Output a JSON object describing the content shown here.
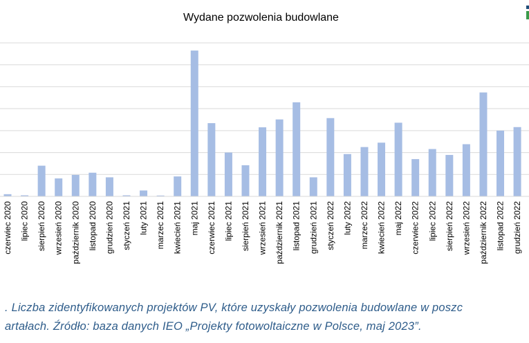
{
  "chart_data": {
    "type": "bar",
    "title": "Wydane pozwolenia budowlane",
    "xlabel": "",
    "ylabel": "",
    "ylim": [
      0,
      70
    ],
    "grid": true,
    "legend": "none",
    "bar_color": "#a6bde4",
    "categories": [
      "czerwiec 2020",
      "lipiec 2020",
      "sierpień 2020",
      "wrzesień 2020",
      "październik 2020",
      "listopad 2020",
      "grudzień 2020",
      "styczeń 2021",
      "luty 2021",
      "marzec 2021",
      "kwiecień 2021",
      "maj 2021",
      "czerwiec 2021",
      "lipiec 2021",
      "sierpień 2021",
      "wrzesień 2021",
      "październik 2021",
      "listopad 2021",
      "grudzień 2021",
      "styczeń 2022",
      "luty 2022",
      "marzec 2022",
      "kwiecień 2022",
      "maj 2022",
      "czerwiec 2022",
      "lipiec 2022",
      "sierpień 2022",
      "wrzesień 2022",
      "październik 2022",
      "listopad 2022",
      "grudzień 2022"
    ],
    "values": [
      1.0,
      0.5,
      14.0,
      8.2,
      9.8,
      10.8,
      8.7,
      0.5,
      2.7,
      0.4,
      9.1,
      66.5,
      33.4,
      20.0,
      14.2,
      31.5,
      35.1,
      42.9,
      8.7,
      35.7,
      19.3,
      22.5,
      24.5,
      33.6,
      17.0,
      21.6,
      18.9,
      23.8,
      47.4,
      30.0,
      31.6
    ]
  },
  "caption": {
    "line1": ". Liczba zidentyfikowanych projektów PV, które uzyskały pozwolenia budowlane w poszc",
    "line2": "artałach. Źródło: baza danych IEO „Projekty fotowoltaiczne w Polsce, maj 2023”."
  },
  "colors": {
    "bar": "#a6bde4",
    "grid": "#d9d9d9",
    "caption": "#2e5c8a",
    "logo": "#3a9a4a"
  }
}
